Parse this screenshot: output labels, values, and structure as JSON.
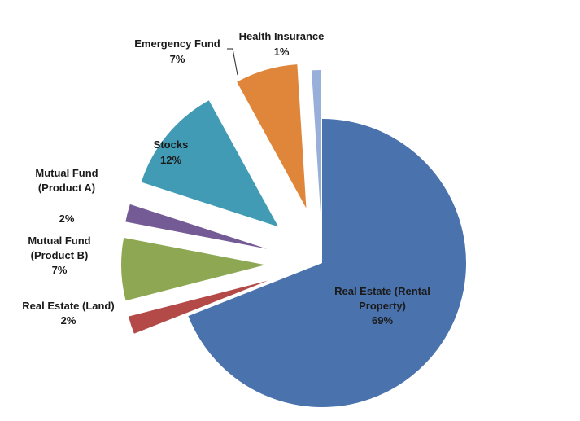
{
  "chart_data": {
    "type": "pie",
    "title": "",
    "series": [
      {
        "slices": [
          {
            "label_lines": [
              "Real Estate (Rental",
              "Property)"
            ],
            "percent_label": "69%",
            "value": 69,
            "color": "#4a72ad"
          },
          {
            "label_lines": [
              "Real Estate (Land)"
            ],
            "percent_label": "2%",
            "value": 2,
            "color": "#b34a47"
          },
          {
            "label_lines": [
              "Mutual Fund",
              "(Product B)"
            ],
            "percent_label": "7%",
            "value": 7,
            "color": "#8da752"
          },
          {
            "label_lines": [
              "Mutual Fund",
              "(Product A)"
            ],
            "percent_label": "2%",
            "value": 2,
            "color": "#745b95"
          },
          {
            "label_lines": [
              "Stocks"
            ],
            "percent_label": "12%",
            "value": 12,
            "color": "#419bb4"
          },
          {
            "label_lines": [
              "Emergency Fund"
            ],
            "percent_label": "7%",
            "value": 7,
            "color": "#e0863b"
          },
          {
            "label_lines": [
              "Health Insurance"
            ],
            "percent_label": "1%",
            "value": 1,
            "color": "#97afd9"
          }
        ]
      }
    ],
    "legend": "none",
    "exploded": true
  }
}
